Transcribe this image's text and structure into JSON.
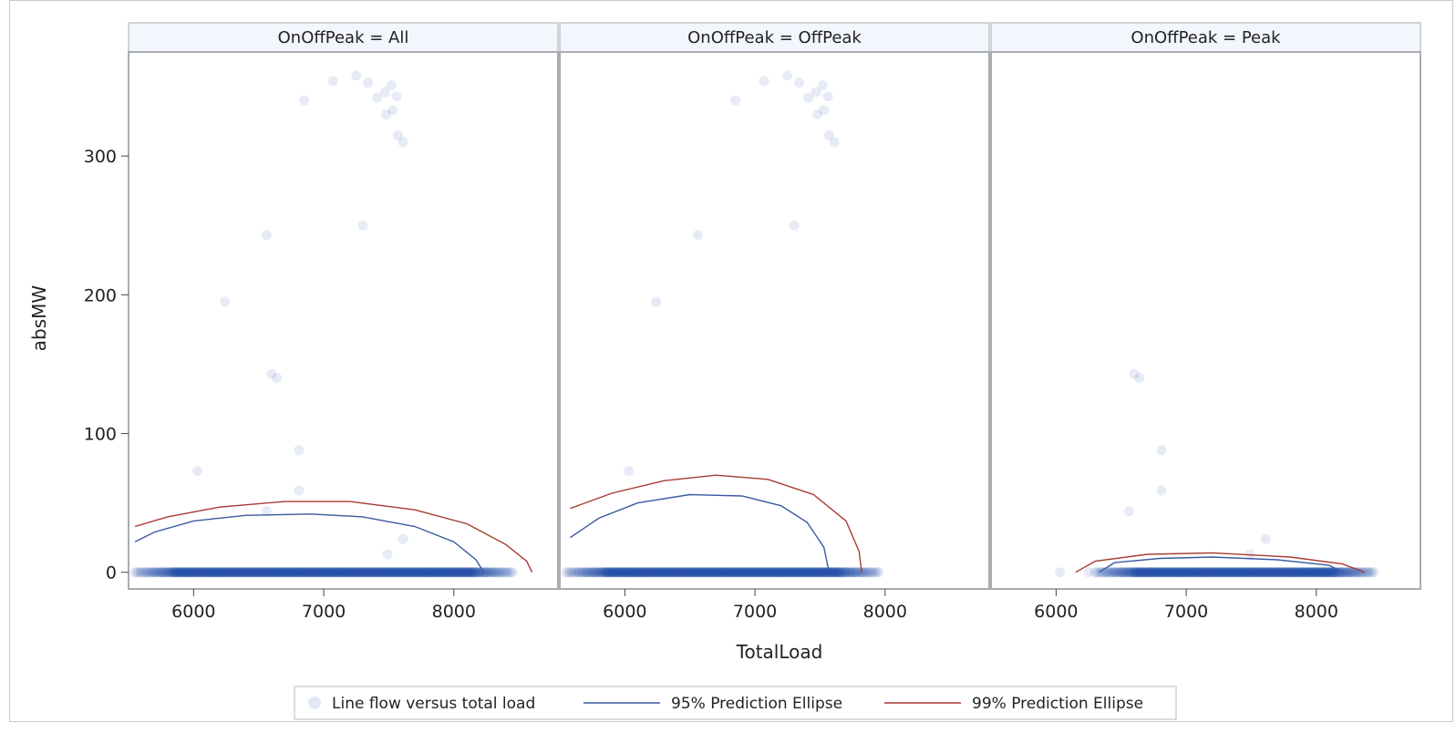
{
  "chart_data": {
    "type": "scatter",
    "panel_variable": "OnOffPeak",
    "xlabel": "TotalLoad",
    "ylabel": "absMW",
    "xlim": [
      5500,
      8800
    ],
    "ylim": [
      -12,
      375
    ],
    "xticks": [
      6000,
      7000,
      8000
    ],
    "yticks": [
      0,
      100,
      200,
      300
    ],
    "legend_position": "bottom",
    "colors": {
      "points": "#0a3b9e",
      "ellipse95": "#3b5aa0",
      "ellipse99": "#a83a32",
      "panel_header_bg": "#f3f6fd",
      "frame": "#a9acb1"
    },
    "legend": [
      {
        "key": "points",
        "label": "Line flow versus total load"
      },
      {
        "key": "ellipse95",
        "label": "95% Prediction Ellipse"
      },
      {
        "key": "ellipse99",
        "label": "99% Prediction Ellipse"
      }
    ],
    "panels": [
      {
        "title": "OnOffPeak = All",
        "zero_band": {
          "x_from": 5550,
          "x_to": 8450
        },
        "points": [
          [
            7250,
            358
          ],
          [
            7070,
            354
          ],
          [
            7340,
            353
          ],
          [
            7520,
            351
          ],
          [
            7470,
            346
          ],
          [
            7560,
            343
          ],
          [
            7410,
            342
          ],
          [
            6850,
            340
          ],
          [
            7530,
            333
          ],
          [
            7480,
            330
          ],
          [
            7570,
            315
          ],
          [
            7610,
            310
          ],
          [
            7300,
            250
          ],
          [
            6560,
            243
          ],
          [
            6240,
            195
          ],
          [
            6600,
            143
          ],
          [
            6640,
            140
          ],
          [
            6810,
            88
          ],
          [
            6030,
            73
          ],
          [
            6810,
            59
          ],
          [
            6560,
            44
          ],
          [
            7610,
            24
          ],
          [
            7490,
            13
          ]
        ],
        "ellipse95": [
          [
            5550,
            22
          ],
          [
            5700,
            29
          ],
          [
            6000,
            37
          ],
          [
            6400,
            41
          ],
          [
            6900,
            42
          ],
          [
            7300,
            40
          ],
          [
            7700,
            33
          ],
          [
            8000,
            22
          ],
          [
            8170,
            9
          ],
          [
            8230,
            0
          ]
        ],
        "ellipse99": [
          [
            5550,
            33
          ],
          [
            5800,
            40
          ],
          [
            6200,
            47
          ],
          [
            6700,
            51
          ],
          [
            7200,
            51
          ],
          [
            7700,
            45
          ],
          [
            8100,
            35
          ],
          [
            8400,
            20
          ],
          [
            8560,
            8
          ],
          [
            8600,
            0
          ]
        ]
      },
      {
        "title": "OnOffPeak = OffPeak",
        "zero_band": {
          "x_from": 5550,
          "x_to": 7950
        },
        "points": [
          [
            7250,
            358
          ],
          [
            7070,
            354
          ],
          [
            7340,
            353
          ],
          [
            7520,
            351
          ],
          [
            7470,
            346
          ],
          [
            7560,
            343
          ],
          [
            7410,
            342
          ],
          [
            6850,
            340
          ],
          [
            7530,
            333
          ],
          [
            7480,
            330
          ],
          [
            7570,
            315
          ],
          [
            7610,
            310
          ],
          [
            7300,
            250
          ],
          [
            6560,
            243
          ],
          [
            6240,
            195
          ],
          [
            6030,
            73
          ]
        ],
        "ellipse95": [
          [
            5580,
            25
          ],
          [
            5800,
            39
          ],
          [
            6100,
            50
          ],
          [
            6500,
            56
          ],
          [
            6900,
            55
          ],
          [
            7200,
            48
          ],
          [
            7400,
            36
          ],
          [
            7530,
            18
          ],
          [
            7570,
            0
          ]
        ],
        "ellipse99": [
          [
            5580,
            46
          ],
          [
            5900,
            57
          ],
          [
            6300,
            66
          ],
          [
            6700,
            70
          ],
          [
            7100,
            67
          ],
          [
            7450,
            56
          ],
          [
            7700,
            37
          ],
          [
            7800,
            15
          ],
          [
            7820,
            0
          ]
        ]
      },
      {
        "title": "OnOffPeak = Peak",
        "zero_band": {
          "x_from": 6300,
          "x_to": 8450
        },
        "points": [
          [
            6600,
            143
          ],
          [
            6640,
            140
          ],
          [
            6810,
            88
          ],
          [
            6810,
            59
          ],
          [
            6560,
            44
          ],
          [
            7610,
            24
          ],
          [
            7490,
            13
          ],
          [
            6030,
            0
          ],
          [
            6250,
            0
          ]
        ],
        "ellipse95": [
          [
            6330,
            0
          ],
          [
            6450,
            7
          ],
          [
            6800,
            10
          ],
          [
            7200,
            11
          ],
          [
            7700,
            9
          ],
          [
            8100,
            5
          ],
          [
            8200,
            0
          ]
        ],
        "ellipse99": [
          [
            6150,
            0
          ],
          [
            6300,
            8
          ],
          [
            6700,
            13
          ],
          [
            7200,
            14
          ],
          [
            7800,
            11
          ],
          [
            8200,
            6
          ],
          [
            8370,
            0
          ]
        ]
      }
    ]
  }
}
